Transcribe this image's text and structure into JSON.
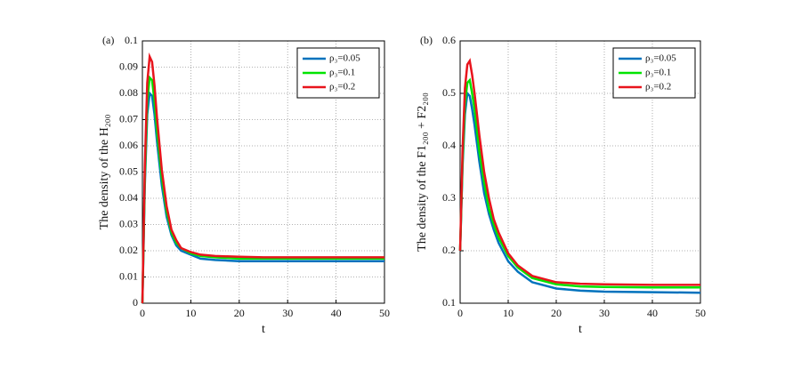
{
  "chart_data": [
    {
      "type": "line",
      "panel_label": "(a)",
      "xlabel": "t",
      "ylabel": "The density of the H₂₀₀",
      "x": [
        0,
        0.5,
        1,
        1.5,
        2,
        2.5,
        3,
        4,
        5,
        6,
        7,
        8,
        10,
        12,
        15,
        20,
        25,
        30,
        40,
        50
      ],
      "series": [
        {
          "name": "ρ₃=0.05",
          "color": "#0072bd",
          "values": [
            0,
            0.045,
            0.072,
            0.08,
            0.079,
            0.072,
            0.062,
            0.045,
            0.033,
            0.026,
            0.022,
            0.02,
            0.0185,
            0.017,
            0.0165,
            0.016,
            0.016,
            0.016,
            0.016,
            0.016
          ]
        },
        {
          "name": "ρ₃=0.1",
          "color": "#00e400",
          "values": [
            0,
            0.048,
            0.077,
            0.086,
            0.085,
            0.077,
            0.066,
            0.048,
            0.035,
            0.027,
            0.023,
            0.021,
            0.019,
            0.018,
            0.0175,
            0.017,
            0.017,
            0.017,
            0.017,
            0.017
          ]
        },
        {
          "name": "ρ₃=0.2",
          "color": "#e8141c",
          "values": [
            0,
            0.052,
            0.084,
            0.094,
            0.092,
            0.083,
            0.071,
            0.051,
            0.037,
            0.028,
            0.024,
            0.021,
            0.0195,
            0.0185,
            0.018,
            0.0177,
            0.0175,
            0.0175,
            0.0175,
            0.0175
          ]
        }
      ],
      "xlim": [
        0,
        50
      ],
      "xticks": [
        0,
        10,
        20,
        30,
        40,
        50
      ],
      "ylim": [
        0,
        0.1
      ],
      "yticks": [
        0,
        0.01,
        0.02,
        0.03,
        0.04,
        0.05,
        0.06,
        0.07,
        0.08,
        0.09,
        0.1
      ],
      "grid": true,
      "legend": "upper right"
    },
    {
      "type": "line",
      "panel_label": "(b)",
      "xlabel": "t",
      "ylabel": "The density of the F1₂₀₀ + F2₂₀₀",
      "x": [
        0,
        0.5,
        1,
        1.5,
        2,
        2.5,
        3,
        4,
        5,
        6,
        7,
        8,
        10,
        12,
        15,
        20,
        25,
        30,
        40,
        50
      ],
      "series": [
        {
          "name": "ρ₃=0.05",
          "color": "#0072bd",
          "values": [
            0.2,
            0.36,
            0.46,
            0.5,
            0.495,
            0.47,
            0.44,
            0.37,
            0.31,
            0.27,
            0.24,
            0.215,
            0.18,
            0.16,
            0.14,
            0.128,
            0.124,
            0.122,
            0.121,
            0.12
          ]
        },
        {
          "name": "ρ₃=0.1",
          "color": "#00e400",
          "values": [
            0.2,
            0.37,
            0.48,
            0.52,
            0.525,
            0.5,
            0.47,
            0.39,
            0.33,
            0.28,
            0.25,
            0.225,
            0.19,
            0.168,
            0.148,
            0.136,
            0.132,
            0.131,
            0.13,
            0.13
          ]
        },
        {
          "name": "ρ₃=0.2",
          "color": "#e8141c",
          "values": [
            0.2,
            0.39,
            0.51,
            0.555,
            0.562,
            0.535,
            0.5,
            0.42,
            0.35,
            0.3,
            0.26,
            0.235,
            0.195,
            0.172,
            0.152,
            0.14,
            0.137,
            0.136,
            0.135,
            0.135
          ]
        }
      ],
      "xlim": [
        0,
        50
      ],
      "xticks": [
        0,
        10,
        20,
        30,
        40,
        50
      ],
      "ylim": [
        0.1,
        0.6
      ],
      "yticks": [
        0.1,
        0.2,
        0.3,
        0.4,
        0.5,
        0.6
      ],
      "grid": true,
      "legend": "upper right"
    }
  ]
}
